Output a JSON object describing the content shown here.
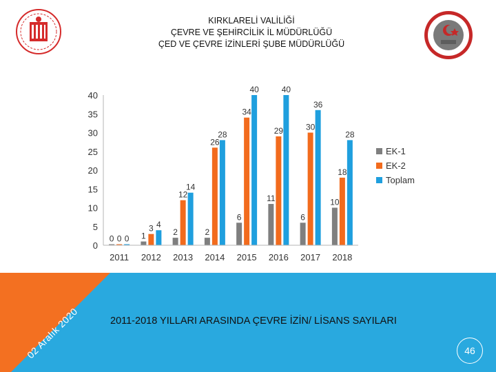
{
  "header": {
    "line1": "KIRKLARELİ VALİLİĞİ",
    "line2": "ÇEVRE VE ŞEHİRCİLİK İL MÜDÜRLÜĞÜ",
    "line3": "ÇED VE ÇEVRE İZİNLERİ ŞUBE MÜDÜRLÜĞÜ"
  },
  "logos": {
    "left_icon": "government-emblem-icon",
    "right_icon": "governorship-seal-icon"
  },
  "footer": {
    "caption": "2011-2018 YILLARI ARASINDA ÇEVRE İZİN/ LİSANS SAYILARI",
    "date": "02 Aralık 2020",
    "page_number": "46"
  },
  "colors": {
    "ek1": "#7f7f7f",
    "ek2": "#f26b1d",
    "toplam": "#1f9fde",
    "banner_blue": "#29a9df",
    "banner_orange": "#f37021"
  },
  "chart_data": {
    "type": "bar",
    "categories": [
      "2011",
      "2012",
      "2013",
      "2014",
      "2015",
      "2016",
      "2017",
      "2018"
    ],
    "series": [
      {
        "name": "EK-1",
        "values": [
          0,
          1,
          2,
          2,
          6,
          11,
          6,
          10
        ]
      },
      {
        "name": "EK-2",
        "values": [
          0,
          3,
          12,
          26,
          34,
          29,
          30,
          18
        ]
      },
      {
        "name": "Toplam",
        "values": [
          0,
          4,
          14,
          28,
          40,
          40,
          36,
          28
        ]
      }
    ],
    "ylim": [
      0,
      40
    ],
    "yticks": [
      0,
      5,
      10,
      15,
      20,
      25,
      30,
      35,
      40
    ],
    "grid": false,
    "legend": "right"
  }
}
